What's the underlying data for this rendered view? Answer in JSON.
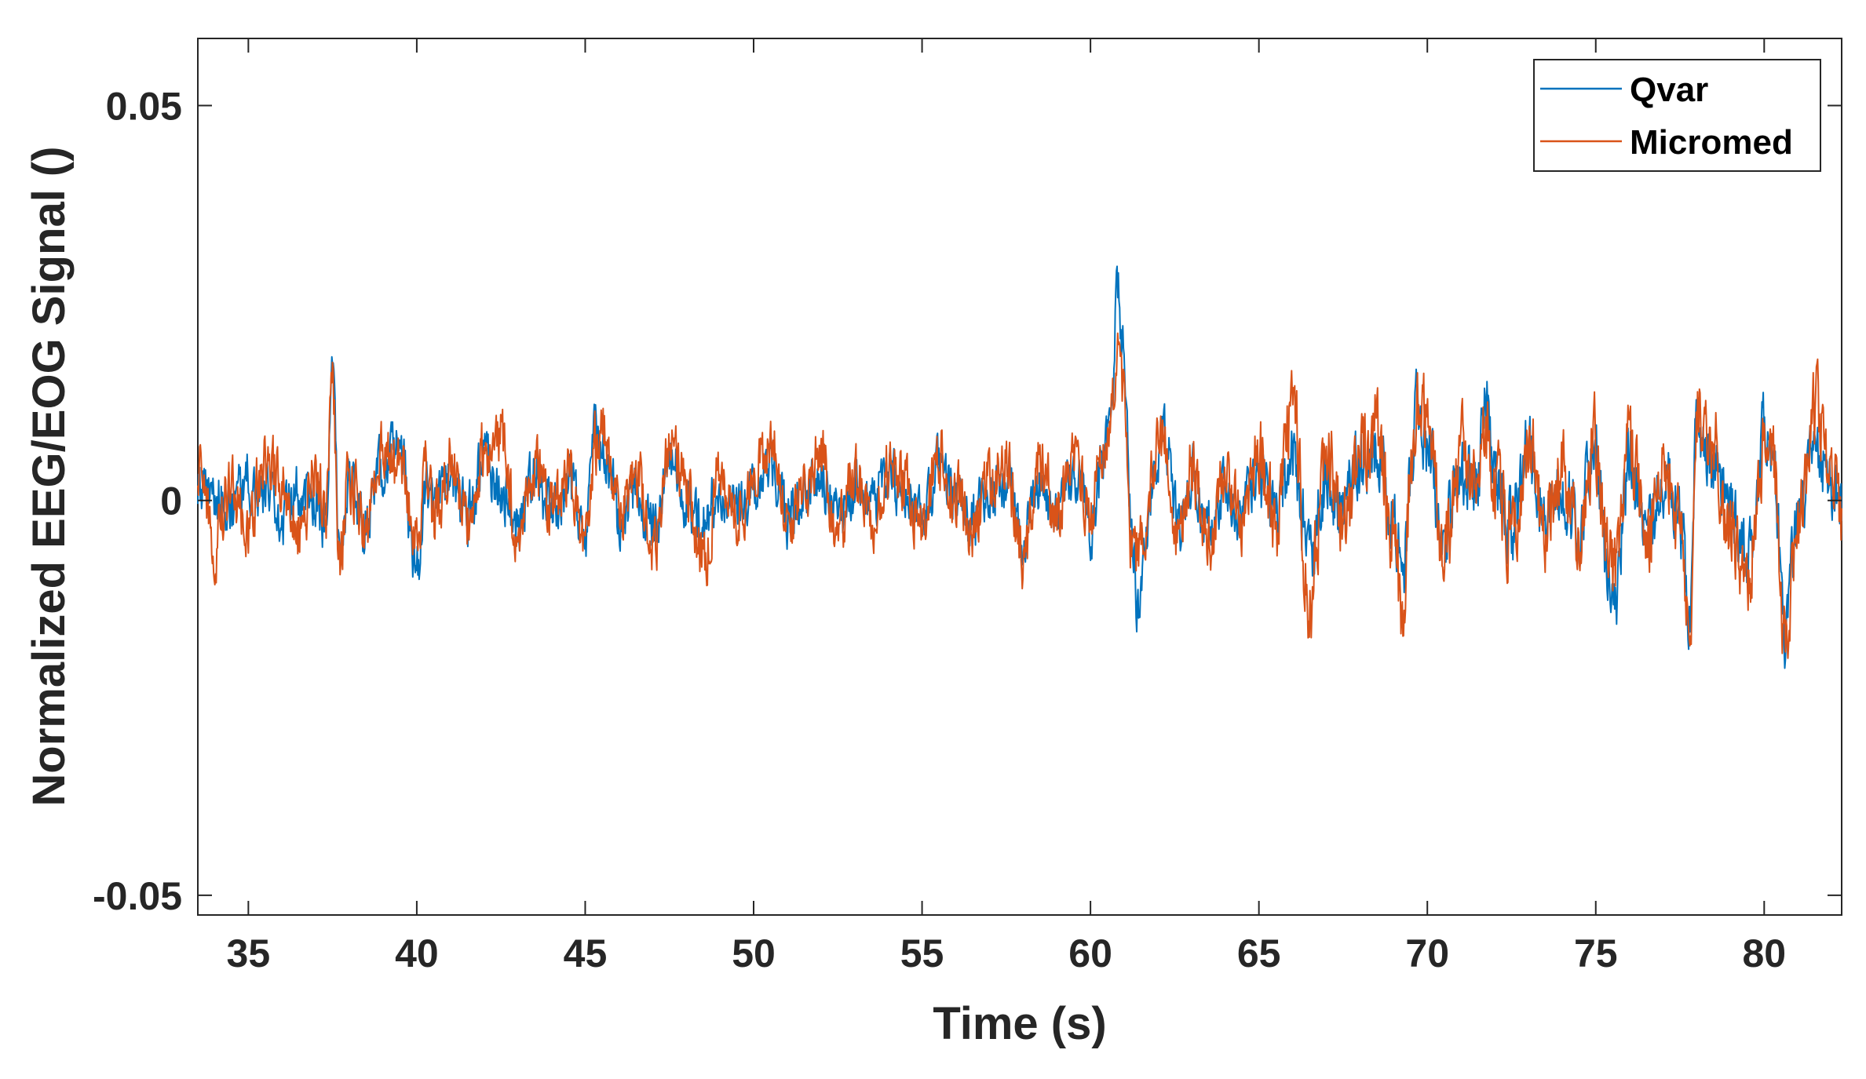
{
  "chart_data": {
    "type": "line",
    "title": "",
    "xlabel": "Time (s)",
    "ylabel": "Normalized EEG/EOG Signal ()",
    "xlim": [
      33.5,
      82.3
    ],
    "ylim": [
      -0.0525,
      0.0585
    ],
    "xticks": [
      35,
      40,
      45,
      50,
      55,
      60,
      65,
      70,
      75,
      80
    ],
    "xtick_labels": [
      "35",
      "40",
      "45",
      "50",
      "55",
      "60",
      "65",
      "70",
      "75",
      "80"
    ],
    "yticks": [
      -0.05,
      0,
      0.05
    ],
    "ytick_labels": [
      "-0.05",
      "0",
      "0.05"
    ],
    "grid": false,
    "legend_position": "top-right",
    "series": [
      {
        "name": "Qvar",
        "color": "#0072BD",
        "x": [
          33.5,
          34.0,
          34.5,
          35.0,
          35.5,
          36.0,
          36.5,
          37.0,
          37.3,
          37.5,
          37.7,
          38.0,
          38.5,
          39.0,
          39.5,
          40.0,
          40.3,
          40.5,
          41.0,
          41.5,
          42.0,
          42.5,
          43.0,
          43.5,
          44.0,
          44.5,
          45.0,
          45.3,
          45.5,
          45.8,
          46.0,
          46.5,
          47.0,
          47.5,
          48.0,
          48.5,
          49.0,
          49.5,
          50.0,
          50.5,
          51.0,
          51.5,
          52.0,
          52.5,
          53.0,
          53.5,
          54.0,
          54.5,
          55.0,
          55.5,
          56.0,
          56.5,
          57.0,
          57.5,
          58.0,
          58.5,
          59.0,
          59.5,
          60.0,
          60.3,
          60.6,
          60.8,
          61.0,
          61.2,
          61.4,
          61.6,
          61.9,
          62.2,
          62.6,
          63.0,
          63.5,
          64.0,
          64.5,
          65.0,
          65.5,
          66.0,
          66.5,
          67.0,
          67.5,
          68.0,
          68.5,
          69.0,
          69.3,
          69.5,
          69.7,
          70.0,
          70.5,
          71.0,
          71.5,
          71.7,
          72.0,
          72.5,
          73.0,
          73.5,
          74.0,
          74.5,
          75.0,
          75.3,
          75.6,
          76.0,
          76.5,
          77.0,
          77.5,
          77.8,
          78.0,
          78.5,
          79.0,
          79.5,
          80.0,
          80.3,
          80.6,
          81.0,
          81.5,
          82.0,
          82.3
        ],
        "y": [
          0.003,
          0.001,
          -0.002,
          0.004,
          0.0,
          -0.003,
          0.002,
          0.001,
          -0.004,
          0.023,
          -0.008,
          0.003,
          -0.004,
          0.006,
          0.009,
          -0.012,
          0.003,
          -0.002,
          0.004,
          -0.003,
          0.008,
          0.001,
          -0.004,
          0.005,
          -0.002,
          0.003,
          -0.006,
          0.012,
          0.01,
          0.004,
          -0.003,
          0.002,
          -0.005,
          0.007,
          0.001,
          -0.004,
          0.003,
          -0.001,
          0.002,
          0.006,
          -0.003,
          0.001,
          0.005,
          -0.004,
          0.002,
          -0.002,
          0.004,
          0.001,
          -0.003,
          0.005,
          0.0,
          -0.004,
          0.002,
          0.003,
          -0.008,
          0.004,
          -0.002,
          0.006,
          -0.005,
          0.005,
          0.012,
          0.038,
          0.027,
          -0.003,
          -0.019,
          -0.01,
          0.006,
          0.011,
          -0.004,
          0.004,
          -0.006,
          0.003,
          -0.002,
          0.005,
          -0.004,
          0.008,
          -0.011,
          0.004,
          -0.002,
          0.006,
          0.01,
          -0.005,
          -0.013,
          0.004,
          0.019,
          0.01,
          -0.008,
          0.006,
          0.001,
          0.021,
          0.003,
          -0.004,
          0.008,
          -0.002,
          0.003,
          -0.003,
          0.012,
          -0.012,
          -0.016,
          0.008,
          -0.004,
          0.005,
          -0.003,
          -0.02,
          0.015,
          0.007,
          -0.002,
          -0.012,
          0.012,
          0.006,
          -0.025,
          -0.004,
          0.008,
          0.002,
          -0.004
        ]
      },
      {
        "name": "Micromed",
        "color": "#D95319",
        "x": [
          33.5,
          34.0,
          34.5,
          35.0,
          35.5,
          36.0,
          36.5,
          37.0,
          37.3,
          37.5,
          37.7,
          38.0,
          38.5,
          39.0,
          39.5,
          40.0,
          40.3,
          40.5,
          41.0,
          41.5,
          42.0,
          42.5,
          43.0,
          43.5,
          44.0,
          44.5,
          45.0,
          45.3,
          45.5,
          45.8,
          46.0,
          46.5,
          47.0,
          47.5,
          48.0,
          48.5,
          49.0,
          49.5,
          50.0,
          50.5,
          51.0,
          51.5,
          52.0,
          52.5,
          53.0,
          53.5,
          54.0,
          54.5,
          55.0,
          55.5,
          56.0,
          56.5,
          57.0,
          57.5,
          58.0,
          58.5,
          59.0,
          59.5,
          60.0,
          60.3,
          60.6,
          60.8,
          61.0,
          61.2,
          61.4,
          61.6,
          61.9,
          62.2,
          62.6,
          63.0,
          63.5,
          64.0,
          64.5,
          65.0,
          65.5,
          66.0,
          66.5,
          67.0,
          67.5,
          68.0,
          68.5,
          69.0,
          69.3,
          69.5,
          69.7,
          70.0,
          70.5,
          71.0,
          71.5,
          71.7,
          72.0,
          72.5,
          73.0,
          73.5,
          74.0,
          74.5,
          75.0,
          75.3,
          75.6,
          76.0,
          76.5,
          77.0,
          77.5,
          77.8,
          78.0,
          78.5,
          79.0,
          79.5,
          80.0,
          80.3,
          80.6,
          81.0,
          81.5,
          82.0,
          82.3
        ],
        "y": [
          0.006,
          -0.009,
          0.004,
          -0.005,
          0.008,
          0.002,
          -0.006,
          0.005,
          -0.002,
          0.021,
          -0.012,
          0.004,
          -0.006,
          0.008,
          0.005,
          -0.006,
          0.006,
          -0.004,
          0.007,
          -0.005,
          0.009,
          0.011,
          -0.005,
          0.006,
          -0.003,
          0.004,
          -0.007,
          0.01,
          0.013,
          0.002,
          -0.004,
          0.005,
          -0.009,
          0.008,
          0.003,
          -0.012,
          0.005,
          -0.002,
          0.004,
          0.011,
          -0.005,
          0.003,
          0.008,
          -0.006,
          0.004,
          -0.003,
          0.006,
          0.003,
          -0.004,
          0.008,
          0.001,
          -0.006,
          0.004,
          0.006,
          -0.011,
          0.008,
          -0.004,
          0.01,
          -0.003,
          0.006,
          0.014,
          0.028,
          0.017,
          -0.008,
          -0.009,
          -0.006,
          0.008,
          0.01,
          -0.006,
          0.006,
          -0.008,
          0.005,
          -0.004,
          0.009,
          -0.006,
          0.018,
          -0.019,
          0.007,
          -0.004,
          0.009,
          0.013,
          -0.008,
          -0.023,
          0.005,
          0.017,
          0.014,
          -0.01,
          0.008,
          0.002,
          0.012,
          0.005,
          -0.007,
          0.011,
          -0.004,
          0.006,
          -0.005,
          0.011,
          -0.01,
          -0.013,
          0.01,
          -0.006,
          0.007,
          -0.004,
          -0.024,
          0.016,
          0.009,
          -0.004,
          -0.015,
          0.011,
          0.007,
          -0.027,
          -0.006,
          0.017,
          0.003,
          -0.005
        ]
      }
    ]
  }
}
